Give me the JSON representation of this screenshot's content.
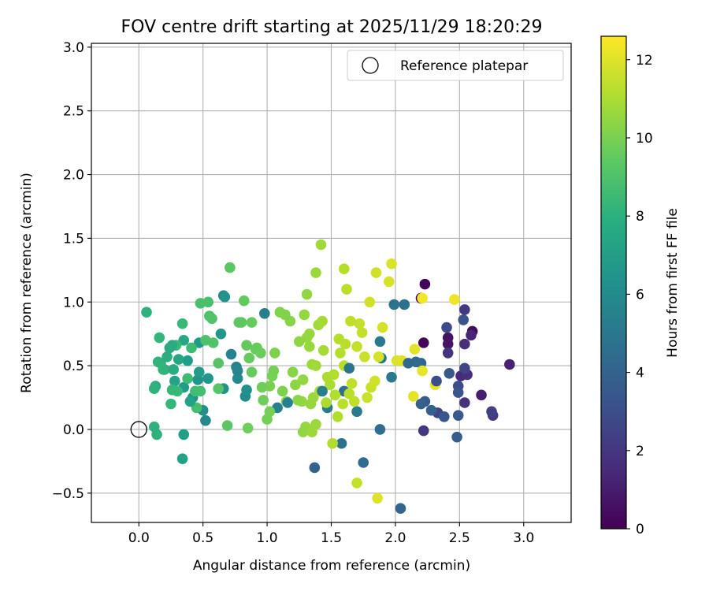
{
  "chart_data": {
    "type": "scatter",
    "title": "FOV centre drift starting at 2025/11/29 18:20:29",
    "xlabel": "Angular distance from reference (arcmin)",
    "ylabel": "Rotation from reference (arcmin)",
    "xlim": [
      -0.37,
      3.37
    ],
    "ylim": [
      -0.73,
      3.03
    ],
    "xticks": [
      "0.0",
      "0.5",
      "1.0",
      "1.5",
      "2.0",
      "2.5",
      "3.0"
    ],
    "yticks": [
      "−0.5",
      "0.0",
      "0.5",
      "1.0",
      "1.5",
      "2.0",
      "2.5",
      "3.0"
    ],
    "grid": true,
    "legend": {
      "placement": "top-right",
      "entries": [
        "Reference platepar"
      ]
    },
    "reference_point": {
      "x": 0.0,
      "y": 0.0
    },
    "colorbar": {
      "label": "Hours from first FF file",
      "range": [
        0,
        12.6
      ],
      "ticks": [
        "0",
        "2",
        "4",
        "6",
        "8",
        "10",
        "12"
      ],
      "colormap": "viridis"
    },
    "points": [
      {
        "x": 2.23,
        "y": 1.14,
        "h": 0.1
      },
      {
        "x": 2.22,
        "y": 0.68,
        "h": 0.2
      },
      {
        "x": 2.2,
        "y": 1.03,
        "h": 0.3
      },
      {
        "x": 2.6,
        "y": 0.77,
        "h": 0.4
      },
      {
        "x": 2.41,
        "y": 0.72,
        "h": 0.6
      },
      {
        "x": 2.41,
        "y": 0.67,
        "h": 0.7
      },
      {
        "x": 2.67,
        "y": 0.27,
        "h": 1.0
      },
      {
        "x": 2.89,
        "y": 0.51,
        "h": 1.2
      },
      {
        "x": 2.59,
        "y": 0.74,
        "h": 1.3
      },
      {
        "x": 2.51,
        "y": 0.42,
        "h": 1.5
      },
      {
        "x": 2.54,
        "y": 0.67,
        "h": 1.6
      },
      {
        "x": 2.56,
        "y": 0.43,
        "h": 1.7
      },
      {
        "x": 2.54,
        "y": 0.21,
        "h": 1.8
      },
      {
        "x": 2.41,
        "y": 0.6,
        "h": 1.9
      },
      {
        "x": 2.22,
        "y": -0.01,
        "h": 2.0
      },
      {
        "x": 2.54,
        "y": 0.94,
        "h": 2.1
      },
      {
        "x": 2.76,
        "y": 0.11,
        "h": 2.2
      },
      {
        "x": 2.75,
        "y": 0.14,
        "h": 2.4
      },
      {
        "x": 2.33,
        "y": 0.13,
        "h": 2.5
      },
      {
        "x": 2.54,
        "y": 0.48,
        "h": 2.6
      },
      {
        "x": 2.4,
        "y": 0.8,
        "h": 2.8
      },
      {
        "x": 2.49,
        "y": 0.34,
        "h": 3.0
      },
      {
        "x": 2.53,
        "y": 0.86,
        "h": 3.2
      },
      {
        "x": 2.49,
        "y": 0.29,
        "h": 3.3
      },
      {
        "x": 2.42,
        "y": 0.44,
        "h": 3.4
      },
      {
        "x": 2.49,
        "y": 0.11,
        "h": 3.5
      },
      {
        "x": 2.23,
        "y": 0.22,
        "h": 3.6
      },
      {
        "x": 2.48,
        "y": -0.06,
        "h": 3.7
      },
      {
        "x": 2.28,
        "y": 0.15,
        "h": 3.8
      },
      {
        "x": 1.37,
        "y": -0.3,
        "h": 3.9
      },
      {
        "x": 2.2,
        "y": 0.52,
        "h": 4.0
      },
      {
        "x": 2.04,
        "y": -0.62,
        "h": 4.1
      },
      {
        "x": 2.16,
        "y": 0.53,
        "h": 4.3
      },
      {
        "x": 1.75,
        "y": -0.26,
        "h": 4.4
      },
      {
        "x": 1.88,
        "y": 0.0,
        "h": 4.5
      },
      {
        "x": 1.6,
        "y": 0.3,
        "h": 4.6
      },
      {
        "x": 1.58,
        "y": -0.11,
        "h": 4.7
      },
      {
        "x": 1.99,
        "y": 0.98,
        "h": 4.8
      },
      {
        "x": 1.89,
        "y": 0.56,
        "h": 4.9
      },
      {
        "x": 1.97,
        "y": 0.41,
        "h": 5.0
      },
      {
        "x": 1.88,
        "y": 0.69,
        "h": 5.1
      },
      {
        "x": 1.7,
        "y": 0.14,
        "h": 5.2
      },
      {
        "x": 1.47,
        "y": 0.17,
        "h": 5.3
      },
      {
        "x": 0.98,
        "y": 0.91,
        "h": 5.4
      },
      {
        "x": 1.08,
        "y": 0.17,
        "h": 5.5
      },
      {
        "x": 0.72,
        "y": 0.59,
        "h": 5.6
      },
      {
        "x": 0.76,
        "y": 0.49,
        "h": 5.7
      },
      {
        "x": 0.66,
        "y": 1.05,
        "h": 5.8
      },
      {
        "x": 0.52,
        "y": 0.07,
        "h": 5.9
      },
      {
        "x": 0.77,
        "y": 0.4,
        "h": 6.0
      },
      {
        "x": 0.83,
        "y": 0.26,
        "h": 6.1
      },
      {
        "x": 0.5,
        "y": 0.15,
        "h": 6.2
      },
      {
        "x": 0.66,
        "y": 0.32,
        "h": 6.3
      },
      {
        "x": 0.42,
        "y": 0.25,
        "h": 6.4
      },
      {
        "x": 0.46,
        "y": 0.39,
        "h": 6.5
      },
      {
        "x": 0.54,
        "y": 0.4,
        "h": 6.6
      },
      {
        "x": 0.64,
        "y": 0.75,
        "h": 6.7
      },
      {
        "x": 0.47,
        "y": 0.68,
        "h": 6.8
      },
      {
        "x": 0.35,
        "y": 0.33,
        "h": 6.9
      },
      {
        "x": 0.38,
        "y": 0.54,
        "h": 7.0
      },
      {
        "x": 0.35,
        "y": -0.04,
        "h": 7.1
      },
      {
        "x": 0.34,
        "y": -0.23,
        "h": 7.2
      },
      {
        "x": 0.28,
        "y": 0.38,
        "h": 7.3
      },
      {
        "x": 0.31,
        "y": 0.55,
        "h": 7.4
      },
      {
        "x": 0.35,
        "y": 0.7,
        "h": 7.5
      },
      {
        "x": 0.24,
        "y": 0.64,
        "h": 7.6
      },
      {
        "x": 0.27,
        "y": 0.47,
        "h": 7.7
      },
      {
        "x": 0.2,
        "y": 0.47,
        "h": 7.8
      },
      {
        "x": 0.13,
        "y": 0.34,
        "h": 7.9
      },
      {
        "x": 0.14,
        "y": -0.04,
        "h": 8.0
      },
      {
        "x": 0.12,
        "y": 0.02,
        "h": 8.0
      },
      {
        "x": 0.06,
        "y": 0.92,
        "h": 8.1
      },
      {
        "x": 0.17,
        "y": 0.52,
        "h": 8.2
      },
      {
        "x": 0.16,
        "y": 0.72,
        "h": 8.3
      },
      {
        "x": 0.25,
        "y": 0.2,
        "h": 8.4
      },
      {
        "x": 0.29,
        "y": 0.66,
        "h": 8.5
      },
      {
        "x": 0.34,
        "y": 0.83,
        "h": 8.5
      },
      {
        "x": 0.41,
        "y": 0.64,
        "h": 8.6
      },
      {
        "x": 0.44,
        "y": 0.3,
        "h": 8.7
      },
      {
        "x": 0.48,
        "y": 0.3,
        "h": 8.8
      },
      {
        "x": 0.48,
        "y": 0.99,
        "h": 8.9
      },
      {
        "x": 0.54,
        "y": 1.0,
        "h": 8.9
      },
      {
        "x": 0.55,
        "y": 0.89,
        "h": 9.0
      },
      {
        "x": 0.57,
        "y": 0.87,
        "h": 9.1
      },
      {
        "x": 0.62,
        "y": 0.52,
        "h": 9.2
      },
      {
        "x": 0.69,
        "y": 0.03,
        "h": 9.3
      },
      {
        "x": 0.71,
        "y": 1.27,
        "h": 9.3
      },
      {
        "x": 0.8,
        "y": 0.84,
        "h": 9.4
      },
      {
        "x": 0.84,
        "y": 0.66,
        "h": 9.5
      },
      {
        "x": 0.86,
        "y": 0.56,
        "h": 9.6
      },
      {
        "x": 0.88,
        "y": 0.84,
        "h": 9.6
      },
      {
        "x": 0.91,
        "y": 0.63,
        "h": 9.7
      },
      {
        "x": 0.85,
        "y": 0.01,
        "h": 9.8
      },
      {
        "x": 0.97,
        "y": 0.23,
        "h": 9.8
      },
      {
        "x": 1.0,
        "y": 0.08,
        "h": 9.9
      },
      {
        "x": 1.02,
        "y": 0.34,
        "h": 10.0
      },
      {
        "x": 1.04,
        "y": 0.42,
        "h": 10.0
      },
      {
        "x": 1.06,
        "y": 0.6,
        "h": 10.1
      },
      {
        "x": 1.1,
        "y": 0.92,
        "h": 10.2
      },
      {
        "x": 1.15,
        "y": 0.22,
        "h": 10.2
      },
      {
        "x": 1.18,
        "y": 0.85,
        "h": 10.3
      },
      {
        "x": 1.22,
        "y": 0.35,
        "h": 10.4
      },
      {
        "x": 1.25,
        "y": 0.69,
        "h": 10.4
      },
      {
        "x": 1.27,
        "y": 0.22,
        "h": 10.5
      },
      {
        "x": 1.31,
        "y": 1.06,
        "h": 10.5
      },
      {
        "x": 1.33,
        "y": 0.65,
        "h": 10.6
      },
      {
        "x": 1.35,
        "y": 0.51,
        "h": 10.7
      },
      {
        "x": 1.38,
        "y": 0.04,
        "h": 10.7
      },
      {
        "x": 1.4,
        "y": 0.82,
        "h": 10.8
      },
      {
        "x": 1.42,
        "y": 1.45,
        "h": 10.8
      },
      {
        "x": 1.44,
        "y": 0.62,
        "h": 10.9
      },
      {
        "x": 1.47,
        "y": 0.41,
        "h": 11.0
      },
      {
        "x": 1.49,
        "y": 0.35,
        "h": 11.0
      },
      {
        "x": 1.51,
        "y": -0.11,
        "h": 11.1
      },
      {
        "x": 1.55,
        "y": 0.1,
        "h": 11.1
      },
      {
        "x": 1.57,
        "y": 0.6,
        "h": 11.2
      },
      {
        "x": 1.6,
        "y": 1.26,
        "h": 11.2
      },
      {
        "x": 1.62,
        "y": 1.1,
        "h": 11.3
      },
      {
        "x": 1.64,
        "y": 0.28,
        "h": 11.3
      },
      {
        "x": 1.68,
        "y": 0.22,
        "h": 11.4
      },
      {
        "x": 1.7,
        "y": -0.42,
        "h": 11.5
      },
      {
        "x": 1.74,
        "y": 0.76,
        "h": 11.5
      },
      {
        "x": 1.78,
        "y": 0.25,
        "h": 11.6
      },
      {
        "x": 1.81,
        "y": 0.33,
        "h": 11.6
      },
      {
        "x": 1.85,
        "y": 1.23,
        "h": 11.7
      },
      {
        "x": 1.87,
        "y": 0.57,
        "h": 11.8
      },
      {
        "x": 1.95,
        "y": 1.16,
        "h": 11.8
      },
      {
        "x": 1.97,
        "y": 1.3,
        "h": 11.9
      },
      {
        "x": 2.01,
        "y": 0.54,
        "h": 11.9
      },
      {
        "x": 1.86,
        "y": -0.54,
        "h": 12.0
      },
      {
        "x": 2.15,
        "y": 0.63,
        "h": 12.1
      },
      {
        "x": 2.14,
        "y": 0.26,
        "h": 12.1
      },
      {
        "x": 2.21,
        "y": 0.46,
        "h": 12.2
      },
      {
        "x": 2.31,
        "y": 0.35,
        "h": 12.2
      },
      {
        "x": 2.46,
        "y": 1.02,
        "h": 12.3
      },
      {
        "x": 2.21,
        "y": 1.03,
        "h": 12.4
      },
      {
        "x": 1.05,
        "y": 0.46,
        "h": 9.9
      },
      {
        "x": 1.14,
        "y": 0.9,
        "h": 10.2
      },
      {
        "x": 1.2,
        "y": 0.45,
        "h": 10.3
      },
      {
        "x": 1.29,
        "y": 0.9,
        "h": 10.5
      },
      {
        "x": 1.3,
        "y": 0.02,
        "h": 10.6
      },
      {
        "x": 1.33,
        "y": 0.75,
        "h": 10.6
      },
      {
        "x": 1.36,
        "y": 0.25,
        "h": 10.7
      },
      {
        "x": 1.38,
        "y": 0.5,
        "h": 10.8
      },
      {
        "x": 1.41,
        "y": 0.3,
        "h": 10.9
      },
      {
        "x": 1.43,
        "y": 0.85,
        "h": 10.9
      },
      {
        "x": 1.46,
        "y": 0.21,
        "h": 11.0
      },
      {
        "x": 1.52,
        "y": 0.43,
        "h": 11.1
      },
      {
        "x": 1.56,
        "y": 0.71,
        "h": 11.2
      },
      {
        "x": 1.59,
        "y": 0.2,
        "h": 11.3
      },
      {
        "x": 1.61,
        "y": 0.67,
        "h": 11.3
      },
      {
        "x": 1.66,
        "y": 0.36,
        "h": 11.4
      },
      {
        "x": 1.72,
        "y": 0.83,
        "h": 11.5
      },
      {
        "x": 1.76,
        "y": 0.57,
        "h": 11.6
      },
      {
        "x": 1.8,
        "y": 1.0,
        "h": 11.7
      },
      {
        "x": 1.9,
        "y": 0.8,
        "h": 11.8
      },
      {
        "x": 2.05,
        "y": 0.54,
        "h": 12.0
      },
      {
        "x": 0.92,
        "y": 0.64,
        "h": 9.6
      },
      {
        "x": 0.95,
        "y": 0.6,
        "h": 9.7
      },
      {
        "x": 0.82,
        "y": 1.01,
        "h": 9.5
      },
      {
        "x": 0.78,
        "y": 0.84,
        "h": 9.4
      },
      {
        "x": 0.62,
        "y": 0.32,
        "h": 9.2
      },
      {
        "x": 0.58,
        "y": 0.68,
        "h": 9.1
      },
      {
        "x": 0.52,
        "y": 0.7,
        "h": 9.0
      },
      {
        "x": 1.24,
        "y": 0.23,
        "h": 10.4
      },
      {
        "x": 1.28,
        "y": 0.39,
        "h": 10.5
      },
      {
        "x": 1.34,
        "y": 0.2,
        "h": 10.6
      },
      {
        "x": 1.31,
        "y": 0.72,
        "h": 10.6
      },
      {
        "x": 1.38,
        "y": 1.23,
        "h": 10.7
      },
      {
        "x": 1.12,
        "y": 0.3,
        "h": 10.1
      },
      {
        "x": 1.53,
        "y": 0.27,
        "h": 11.1
      },
      {
        "x": 1.6,
        "y": 0.5,
        "h": 11.2
      },
      {
        "x": 1.65,
        "y": 0.85,
        "h": 11.4
      },
      {
        "x": 1.7,
        "y": 0.65,
        "h": 11.5
      },
      {
        "x": 1.84,
        "y": 0.38,
        "h": 11.7
      },
      {
        "x": 0.96,
        "y": 0.33,
        "h": 9.8
      },
      {
        "x": 0.88,
        "y": 0.45,
        "h": 9.6
      },
      {
        "x": 1.02,
        "y": 0.14,
        "h": 9.9
      },
      {
        "x": 1.35,
        "y": -0.02,
        "h": 10.7
      },
      {
        "x": 1.28,
        "y": -0.02,
        "h": 10.5
      },
      {
        "x": 0.45,
        "y": 0.17,
        "h": 8.8
      },
      {
        "x": 0.38,
        "y": 0.4,
        "h": 8.6
      },
      {
        "x": 0.3,
        "y": 0.3,
        "h": 8.5
      },
      {
        "x": 0.26,
        "y": 0.31,
        "h": 8.4
      },
      {
        "x": 0.19,
        "y": 0.47,
        "h": 8.2
      },
      {
        "x": 0.15,
        "y": 0.53,
        "h": 8.2
      },
      {
        "x": 0.12,
        "y": 0.32,
        "h": 8.1
      },
      {
        "x": 0.22,
        "y": 0.57,
        "h": 7.8
      },
      {
        "x": 0.26,
        "y": 0.66,
        "h": 7.7
      },
      {
        "x": 0.4,
        "y": 0.22,
        "h": 7.2
      },
      {
        "x": 0.47,
        "y": 0.45,
        "h": 6.9
      },
      {
        "x": 0.67,
        "y": 1.04,
        "h": 6.5
      },
      {
        "x": 0.84,
        "y": 0.31,
        "h": 6.3
      },
      {
        "x": 0.77,
        "y": 0.46,
        "h": 5.8
      },
      {
        "x": 1.16,
        "y": 0.21,
        "h": 5.5
      },
      {
        "x": 1.43,
        "y": 0.3,
        "h": 5.4
      },
      {
        "x": 2.1,
        "y": 0.52,
        "h": 4.2
      },
      {
        "x": 2.07,
        "y": 0.98,
        "h": 4.6
      },
      {
        "x": 1.64,
        "y": 0.48,
        "h": 4.8
      },
      {
        "x": 2.2,
        "y": 0.2,
        "h": 3.9
      },
      {
        "x": 2.38,
        "y": 0.1,
        "h": 3.4
      },
      {
        "x": 2.32,
        "y": 0.38,
        "h": 3.1
      }
    ]
  }
}
